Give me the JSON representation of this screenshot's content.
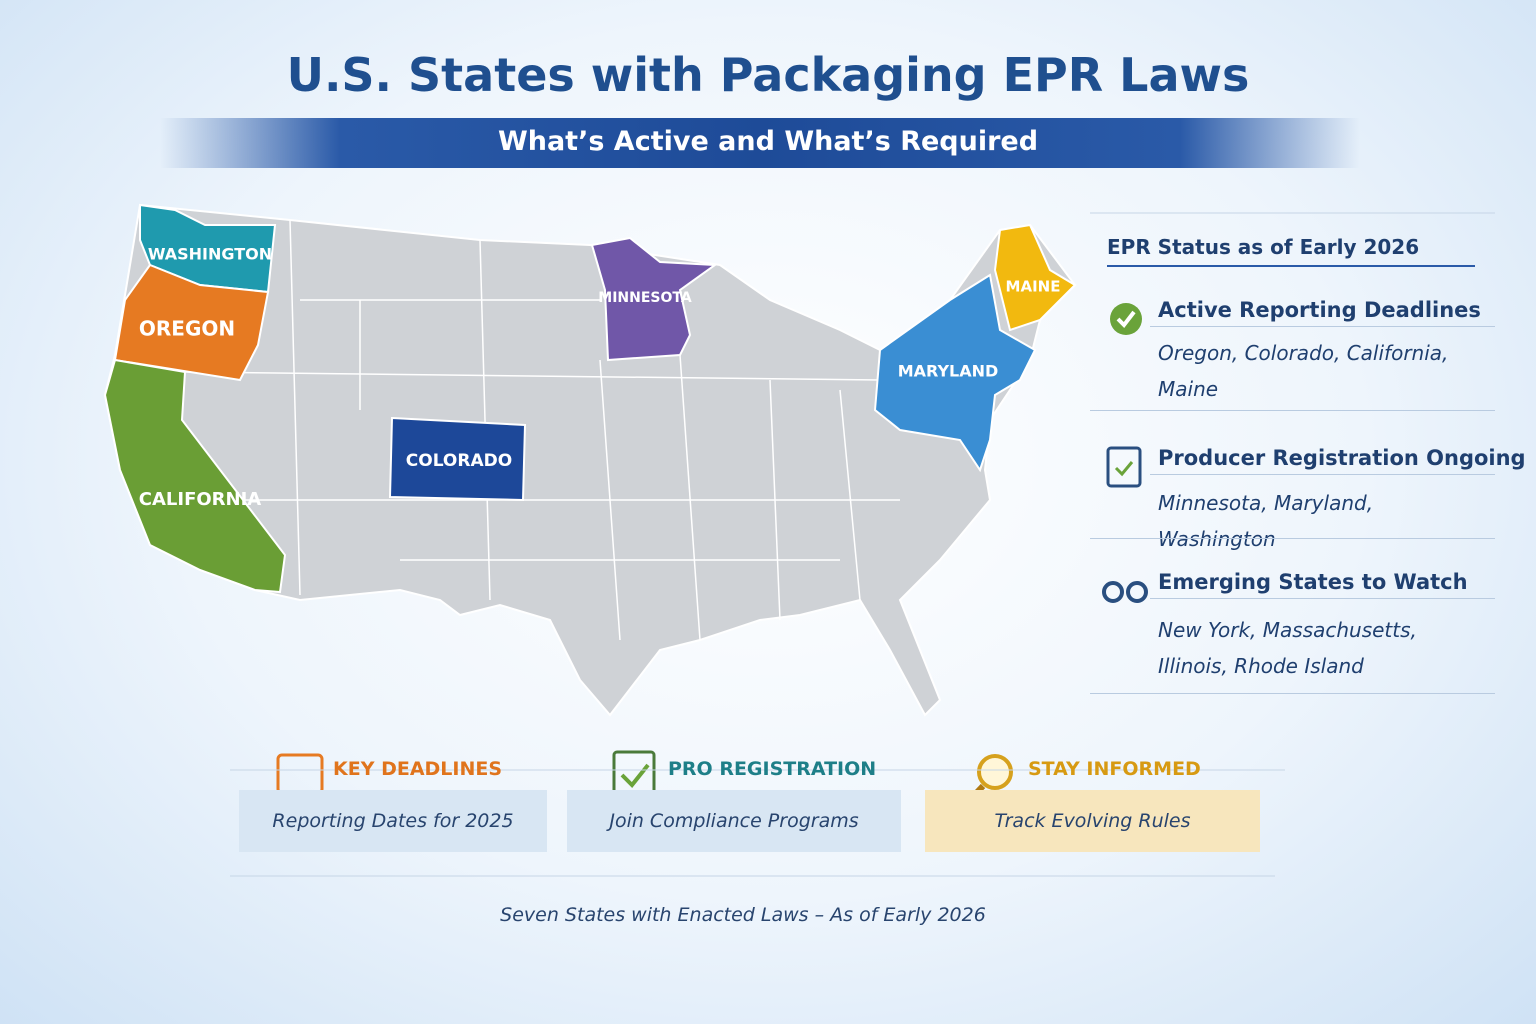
{
  "header": {
    "title": "U.S. States with Packaging EPR Laws",
    "subtitle": "What’s Active and What’s Required"
  },
  "map": {
    "states": [
      {
        "label": "WASHINGTON"
      },
      {
        "label": "OREGON"
      },
      {
        "label": "CALIFORNIA"
      },
      {
        "label": "COLORADO"
      },
      {
        "label": "MINNESOTA"
      },
      {
        "label": "MAINE"
      },
      {
        "label": "MARYLAND"
      }
    ]
  },
  "status_panel": {
    "title": "EPR Status as of Early 2026",
    "groups": [
      {
        "heading": "Active Reporting Deadlines",
        "states": "Oregon, Colorado, California, Maine"
      },
      {
        "heading": "Producer Registration Ongoing",
        "states": "Minnesota, Maryland, Washington"
      },
      {
        "heading": "Emerging States to Watch",
        "states": "New York, Massachusetts, Illinois, Rhode Island"
      }
    ]
  },
  "cards": [
    {
      "heading": "KEY DEADLINES",
      "text": "Reporting Dates for 2025"
    },
    {
      "heading": "PRO REGISTRATION",
      "text": "Join Compliance Programs"
    },
    {
      "heading": "STAY INFORMED",
      "text": "Track Evolving Rules"
    }
  ],
  "footer": "Seven States with Enacted Laws – As of Early 2026"
}
